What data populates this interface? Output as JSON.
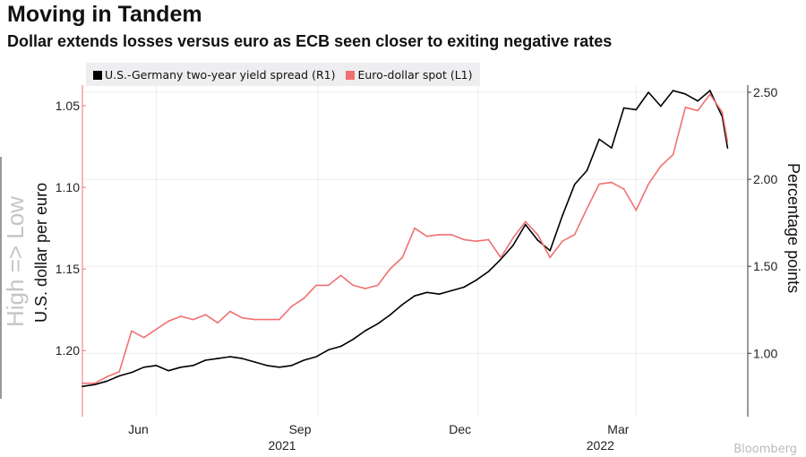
{
  "title": "Moving in Tandem",
  "subtitle": "Dollar extends losses versus euro as ECB seen closer to exiting negative rates",
  "watermark": "Bloomberg",
  "chart_data": {
    "type": "line",
    "left_axis": {
      "label": "U.S. dollar per euro",
      "inverted": true,
      "range": [
        1.04,
        1.23
      ],
      "ticks": [
        "1.05",
        "1.10",
        "1.15",
        "1.20"
      ],
      "tick_values": [
        1.05,
        1.1,
        1.15,
        1.2
      ],
      "annotation": "High => Low"
    },
    "right_axis": {
      "label": "Percentage points",
      "range": [
        0.68,
        2.62
      ],
      "ticks": [
        "1.00",
        "1.50",
        "2.00",
        "2.50"
      ],
      "tick_values": [
        1.0,
        1.5,
        2.0,
        2.5
      ]
    },
    "x_axis": {
      "ticks": [
        "Jun",
        "Sep",
        "Dec",
        "Mar"
      ],
      "tick_dates": [
        "2021-06-01",
        "2021-09-01",
        "2021-12-01",
        "2022-03-01"
      ],
      "year_labels": [
        "2021",
        "2022"
      ],
      "year_label_dates": [
        "2021-09-01",
        "2022-03-01"
      ],
      "range": [
        "2021-04-20",
        "2022-04-30"
      ]
    },
    "grid": true,
    "legend_position": "top-left",
    "x": [
      "2021-04-20",
      "2021-04-27",
      "2021-05-04",
      "2021-05-11",
      "2021-05-18",
      "2021-05-25",
      "2021-06-01",
      "2021-06-08",
      "2021-06-15",
      "2021-06-22",
      "2021-06-29",
      "2021-07-06",
      "2021-07-13",
      "2021-07-20",
      "2021-07-27",
      "2021-08-03",
      "2021-08-10",
      "2021-08-17",
      "2021-08-24",
      "2021-08-31",
      "2021-09-07",
      "2021-09-14",
      "2021-09-21",
      "2021-09-28",
      "2021-10-05",
      "2021-10-12",
      "2021-10-19",
      "2021-10-26",
      "2021-11-02",
      "2021-11-09",
      "2021-11-16",
      "2021-11-23",
      "2021-11-30",
      "2021-12-07",
      "2021-12-14",
      "2021-12-21",
      "2021-12-28",
      "2022-01-04",
      "2022-01-11",
      "2022-01-18",
      "2022-01-25",
      "2022-02-01",
      "2022-02-08",
      "2022-02-15",
      "2022-02-22",
      "2022-03-01",
      "2022-03-08",
      "2022-03-15",
      "2022-03-22",
      "2022-03-29",
      "2022-04-05",
      "2022-04-12",
      "2022-04-19",
      "2022-04-22"
    ],
    "series": [
      {
        "name": "U.S.-Germany two-year yield spread (R1)",
        "axis": "right",
        "color": "#000000",
        "values": [
          0.81,
          0.82,
          0.84,
          0.87,
          0.89,
          0.92,
          0.93,
          0.9,
          0.92,
          0.93,
          0.96,
          0.97,
          0.98,
          0.97,
          0.95,
          0.93,
          0.92,
          0.93,
          0.96,
          0.98,
          1.02,
          1.04,
          1.08,
          1.13,
          1.17,
          1.22,
          1.28,
          1.33,
          1.35,
          1.34,
          1.36,
          1.38,
          1.42,
          1.47,
          1.54,
          1.62,
          1.74,
          1.65,
          1.59,
          1.79,
          1.97,
          2.05,
          2.23,
          2.18,
          2.41,
          2.4,
          2.5,
          2.42,
          2.51,
          2.49,
          2.45,
          2.51,
          2.36,
          2.18
        ]
      },
      {
        "name": "Euro-dollar spot (L1)",
        "axis": "left",
        "color": "#f07070",
        "values": [
          1.22,
          1.22,
          1.216,
          1.213,
          1.188,
          1.192,
          1.187,
          1.182,
          1.179,
          1.181,
          1.178,
          1.183,
          1.176,
          1.18,
          1.181,
          1.181,
          1.181,
          1.173,
          1.168,
          1.16,
          1.16,
          1.154,
          1.16,
          1.162,
          1.16,
          1.15,
          1.143,
          1.125,
          1.13,
          1.129,
          1.129,
          1.132,
          1.133,
          1.132,
          1.143,
          1.131,
          1.121,
          1.129,
          1.143,
          1.133,
          1.129,
          1.113,
          1.098,
          1.097,
          1.101,
          1.114,
          1.098,
          1.087,
          1.08,
          1.051,
          1.053,
          1.043,
          1.054,
          1.072
        ]
      }
    ]
  }
}
